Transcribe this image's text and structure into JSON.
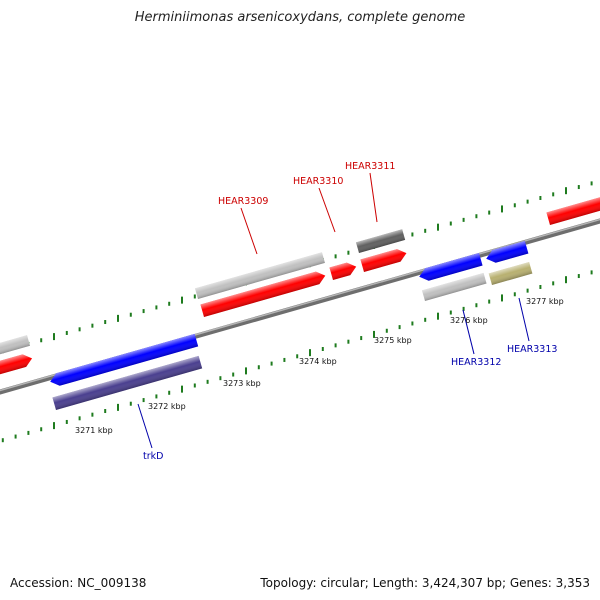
{
  "title": "Herminiimonas arsenicoxydans, complete genome",
  "footer": {
    "accession": "Accession: NC_009138",
    "stats": "Topology: circular; Length: 3,424,307 bp; Genes: 3,353"
  },
  "colors": {
    "forward_gene": "#ff0000",
    "reverse_gene": "#0000ff",
    "pseudo_or_other": "#c0c0c0",
    "dark_gray": "#606060",
    "navy": "#4a3f8f",
    "olive": "#b8b070",
    "backbone": "#808080",
    "tick": "#1e7b1e",
    "label_red": "#cc0000",
    "label_blue": "#0000aa"
  },
  "scale_labels": [
    "3271 kbp",
    "3272 kbp",
    "3273 kbp",
    "3274 kbp",
    "3275 kbp",
    "3276 kbp",
    "3277 kbp"
  ],
  "gene_labels": [
    {
      "id": "HEAR3309",
      "color_key": "label_red"
    },
    {
      "id": "HEAR3310",
      "color_key": "label_red"
    },
    {
      "id": "HEAR3311",
      "color_key": "label_red"
    },
    {
      "id": "HEAR3312",
      "color_key": "label_blue"
    },
    {
      "id": "HEAR3313",
      "color_key": "label_blue"
    },
    {
      "id": "trkD",
      "color_key": "label_blue"
    }
  ],
  "genes": [
    {
      "id": "left-red",
      "color_key": "forward_gene"
    },
    {
      "id": "left-gray",
      "color_key": "pseudo_or_other"
    },
    {
      "id": "trkD-blue",
      "color_key": "reverse_gene"
    },
    {
      "id": "trkD-navy",
      "color_key": "navy"
    },
    {
      "id": "HEAR3309-gray",
      "color_key": "pseudo_or_other"
    },
    {
      "id": "HEAR3309-red",
      "color_key": "forward_gene"
    },
    {
      "id": "HEAR3310-red",
      "color_key": "forward_gene"
    },
    {
      "id": "HEAR3311-dark",
      "color_key": "dark_gray"
    },
    {
      "id": "HEAR3311-red",
      "color_key": "forward_gene"
    },
    {
      "id": "HEAR3312-blue",
      "color_key": "reverse_gene"
    },
    {
      "id": "HEAR3312-gray",
      "color_key": "pseudo_or_other"
    },
    {
      "id": "HEAR3313-blue",
      "color_key": "reverse_gene"
    },
    {
      "id": "HEAR3313-olive",
      "color_key": "olive"
    },
    {
      "id": "right-red",
      "color_key": "forward_gene"
    }
  ]
}
